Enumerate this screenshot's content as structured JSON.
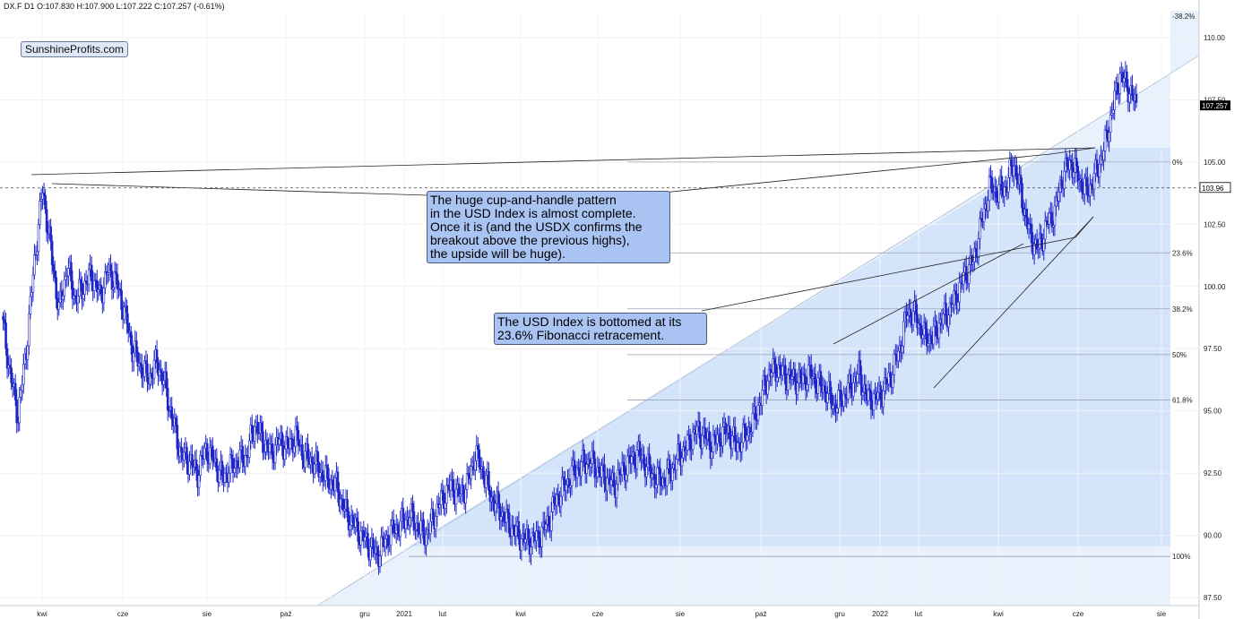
{
  "header": {
    "ohlc_text": "DX.F  D1  O:107.830  H:107.900  L:107.222  C:107.257  (-0.61%)"
  },
  "brand_label": "SunshineProfits.com",
  "callouts": [
    "The huge cup-and-handle pattern\nin the USD Index is almost complete.\nOnce it is (and the USDX confirms the\nbreakout above the previous highs),\nthe upside will be huge).",
    "The USD Index is bottomed at its\n23.6% Fibonacci retracement."
  ],
  "chart_data": {
    "type": "line",
    "title": "",
    "xlabel": "",
    "ylabel": "",
    "ylim": [
      87,
      111.5
    ],
    "y_ticks": [
      "87.50",
      "90.00",
      "92.50",
      "95.00",
      "97.50",
      "100.00",
      "102.50",
      "105.00",
      "107.50",
      "110.00"
    ],
    "x_ticks": [
      "kwi",
      "cze",
      "sie",
      "paź",
      "gru",
      "2021",
      "lut",
      "kwi",
      "cze",
      "sie",
      "paź",
      "gru",
      "2022",
      "lut",
      "kwi",
      "cze",
      "sie"
    ],
    "series": [
      {
        "values": [
          98.8,
          96.5,
          94.8,
          97.5,
          101.0,
          103.9,
          101.5,
          99.0,
          100.8,
          99.5,
          100.0,
          100.5,
          99.6,
          100.6,
          100.2,
          99.0,
          97.5,
          96.8,
          96.3,
          97.0,
          96.0,
          94.5,
          93.2,
          93.0,
          92.5,
          93.5,
          93.0,
          92.3,
          92.7,
          93.0,
          93.2,
          94.5,
          93.8,
          93.3,
          93.8,
          93.5,
          94.0,
          93.2,
          93.0,
          92.6,
          92.2,
          92.0,
          91.0,
          90.5,
          90.0,
          89.6,
          89.2,
          89.8,
          90.2,
          90.5,
          90.8,
          90.3,
          90.0,
          90.8,
          91.5,
          92.0,
          91.6,
          92.0,
          93.3,
          92.5,
          91.5,
          91.0,
          90.5,
          90.1,
          89.8,
          89.8,
          90.0,
          90.6,
          91.5,
          92.0,
          92.5,
          92.8,
          93.0,
          92.6,
          92.3,
          92.0,
          92.6,
          93.0,
          93.3,
          92.8,
          92.3,
          92.2,
          92.6,
          93.2,
          93.6,
          94.2,
          94.0,
          93.6,
          94.0,
          94.2,
          93.6,
          94.0,
          94.5,
          95.5,
          96.5,
          96.7,
          96.4,
          96.3,
          96.2,
          96.5,
          96.1,
          95.8,
          95.2,
          95.5,
          96.0,
          96.5,
          95.5,
          95.5,
          95.8,
          96.5,
          97.5,
          99.0,
          98.8,
          98.0,
          97.9,
          98.6,
          99.0,
          99.6,
          100.5,
          101.0,
          102.5,
          104.0,
          103.8,
          104.0,
          105.0,
          103.5,
          102.0,
          101.5,
          102.5,
          103.0,
          104.5,
          105.0,
          104.3,
          103.8,
          104.5,
          105.5,
          107.0,
          108.5,
          108.0,
          107.257
        ]
      }
    ],
    "price_markers": [
      "107.257",
      "103.96"
    ],
    "fibonacci_levels": [
      {
        "label": "-38.2%",
        "value": 110.87
      },
      {
        "label": "0%",
        "value": 105.0
      },
      {
        "label": "23.6%",
        "value": 101.35
      },
      {
        "label": "38.2%",
        "value": 99.1
      },
      {
        "label": "50%",
        "value": 97.26
      },
      {
        "label": "61.8%",
        "value": 95.44
      },
      {
        "label": "100%",
        "value": 89.15
      }
    ],
    "grid": true,
    "colors": {
      "candles": "#1e26c9",
      "fibonacci_fill": "#d4e4fa",
      "fibonacci_fill_upper": "#e9f2fc",
      "trend_lines": "#222222",
      "fib_lines": "#9aa4b4"
    }
  }
}
